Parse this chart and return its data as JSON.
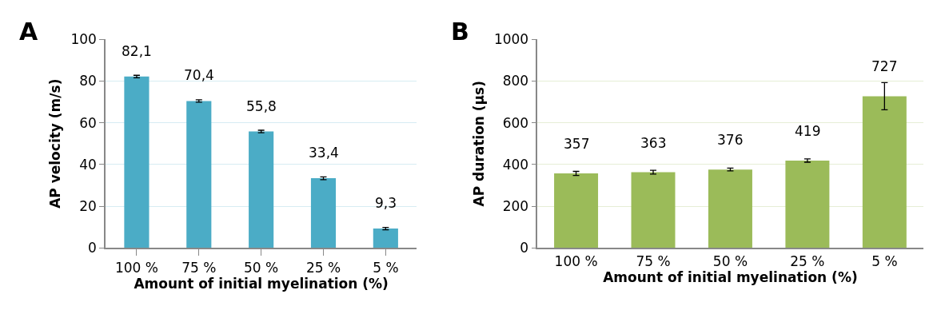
{
  "chart_data": [
    {
      "type": "bar",
      "title": "A",
      "xlabel": "Amount of initial myelination (%)",
      "ylabel": "AP velocity (m/s)",
      "categories": [
        "100 %",
        "75 %",
        "50 %",
        "25 %",
        "5 %"
      ],
      "values": [
        82.1,
        70.4,
        55.8,
        33.4,
        9.3
      ],
      "color": "#4bacc6",
      "errors": [
        0.6,
        0.6,
        0.6,
        0.7,
        0.6
      ],
      "value_labels": [
        "82,1",
        "70,4",
        "55,8",
        "33,4",
        "9,3"
      ],
      "ylim": [
        0,
        100
      ],
      "yticks": [
        0,
        20,
        40,
        60,
        80,
        100
      ],
      "grid": "y"
    },
    {
      "type": "bar",
      "title": "B",
      "xlabel": "Amount of initial myelination (%)",
      "ylabel": "AP duration (µs)",
      "categories": [
        "100 %",
        "75 %",
        "50 %",
        "25 %",
        "5 %"
      ],
      "values": [
        357,
        363,
        376,
        419,
        727
      ],
      "color": "#9bbb59",
      "errors": [
        10,
        9,
        7,
        8,
        65
      ],
      "data_labels": true,
      "ylim": [
        0,
        1000
      ],
      "yticks": [
        0,
        200,
        400,
        600,
        800,
        1000
      ],
      "grid": "y"
    }
  ]
}
